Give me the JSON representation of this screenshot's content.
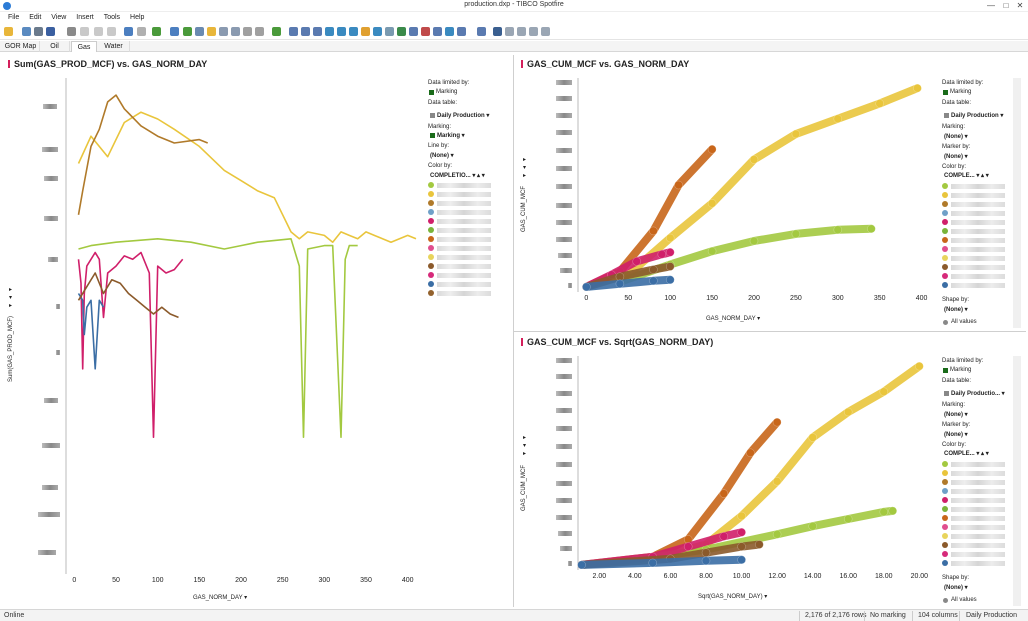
{
  "window": {
    "title": "production.dxp - TIBCO Spotfire"
  },
  "menu": [
    "File",
    "Edit",
    "View",
    "Insert",
    "Tools",
    "Help"
  ],
  "tabs": [
    {
      "label": "GOR Map"
    },
    {
      "label": "Oil"
    },
    {
      "label": "Gas",
      "active": true
    },
    {
      "label": "Water"
    }
  ],
  "colors": {
    "accent": "#d41f5b",
    "marking": "#1a6b1a"
  },
  "series_colors": [
    "#a3c940",
    "#e9c53c",
    "#b07a2a",
    "#6fa0c8",
    "#d01f6a",
    "#7ab43a",
    "#c8661a",
    "#e04e8e",
    "#e8d45c",
    "#8b5a2b",
    "#d62a7a",
    "#3b6ea5",
    "#93622d"
  ],
  "panels": {
    "left": {
      "title": "Sum(GAS_PROD_MCF) vs. GAS_NORM_DAY",
      "y_label": "Sum(GAS_PROD_MCF)",
      "x_label": "GAS_NORM_DAY",
      "legend": {
        "data_limited_label": "Data limited by:",
        "data_limited_value": "Marking",
        "data_table_label": "Data table:",
        "data_table_value": "Daily Production",
        "marking_label": "Marking:",
        "marking_value": "Marking",
        "line_by_label": "Line by:",
        "line_by_value": "(None)",
        "color_by_label": "Color by:",
        "color_by_value": "COMPLETIO..."
      }
    },
    "top_right": {
      "title": "GAS_CUM_MCF vs. GAS_NORM_DAY",
      "y_label": "GAS_CUM_MCF",
      "x_label": "GAS_NORM_DAY",
      "legend": {
        "data_limited_label": "Data limited by:",
        "data_limited_value": "Marking",
        "data_table_label": "Data table:",
        "data_table_value": "Daily Production",
        "marking_label": "Marking:",
        "marking_value": "(None)",
        "marker_by_label": "Marker by:",
        "marker_by_value": "(None)",
        "color_by_label": "Color by:",
        "color_by_value": "COMPLE...",
        "shape_by_label": "Shape by:",
        "shape_by_value": "(None)",
        "all_values": "All values"
      }
    },
    "bottom_right": {
      "title": "GAS_CUM_MCF vs. Sqrt(GAS_NORM_DAY)",
      "y_label": "GAS_CUM_MCF",
      "x_label": "Sqrt(GAS_NORM_DAY)",
      "legend": {
        "data_limited_label": "Data limited by:",
        "data_limited_value": "Marking",
        "data_table_label": "Data table:",
        "data_table_value": "Daily Productio...",
        "marking_label": "Marking:",
        "marking_value": "(None)",
        "marker_by_label": "Marker by:",
        "marker_by_value": "(None)",
        "color_by_label": "Color by:",
        "color_by_value": "COMPLE...",
        "shape_by_label": "Shape by:",
        "shape_by_value": "(None)",
        "all_values": "All values"
      }
    }
  },
  "chart_data": [
    {
      "type": "line",
      "title": "Sum(GAS_PROD_MCF) vs. GAS_NORM_DAY",
      "xlabel": "GAS_NORM_DAY",
      "ylabel": "Sum(GAS_PROD_MCF)",
      "xlim": [
        -10,
        410
      ],
      "x_ticks": [
        0,
        50,
        100,
        150,
        200,
        250,
        300,
        350,
        400
      ],
      "y_tick_labels_obscured": true,
      "series": [
        {
          "color": "#e9c53c",
          "points": [
            [
              5,
              120
            ],
            [
              20,
              128
            ],
            [
              40,
              122
            ],
            [
              60,
              132
            ],
            [
              80,
              135
            ],
            [
              100,
              133
            ],
            [
              120,
              130
            ],
            [
              150,
              125
            ],
            [
              180,
              118
            ],
            [
              200,
              115
            ],
            [
              220,
              112
            ],
            [
              240,
              110
            ],
            [
              260,
              100
            ],
            [
              270,
              98
            ],
            [
              280,
              100
            ],
            [
              300,
              99
            ],
            [
              310,
              97
            ],
            [
              320,
              100
            ],
            [
              330,
              99
            ],
            [
              340,
              98
            ],
            [
              350,
              100
            ],
            [
              360,
              99
            ],
            [
              380,
              97
            ],
            [
              400,
              99
            ],
            [
              410,
              98
            ]
          ]
        },
        {
          "color": "#a3c940",
          "points": [
            [
              5,
              95
            ],
            [
              20,
              96
            ],
            [
              50,
              97
            ],
            [
              100,
              98
            ],
            [
              140,
              97
            ],
            [
              180,
              95
            ],
            [
              200,
              96
            ],
            [
              220,
              97
            ],
            [
              260,
              98
            ],
            [
              270,
              90
            ],
            [
              275,
              40
            ],
            [
              280,
              95
            ],
            [
              300,
              96
            ],
            [
              310,
              96
            ],
            [
              320,
              40
            ],
            [
              325,
              92
            ],
            [
              330,
              96
            ],
            [
              340,
              96
            ]
          ]
        },
        {
          "color": "#b07a2a",
          "points": [
            [
              5,
              105
            ],
            [
              10,
              112
            ],
            [
              20,
              125
            ],
            [
              30,
              130
            ],
            [
              40,
              138
            ],
            [
              50,
              140
            ],
            [
              60,
              136
            ],
            [
              80,
              131
            ],
            [
              100,
              128
            ],
            [
              120,
              126
            ],
            [
              150,
              127
            ],
            [
              160,
              126
            ]
          ]
        },
        {
          "color": "#d01f6a",
          "points": [
            [
              5,
              92
            ],
            [
              8,
              85
            ],
            [
              10,
              60
            ],
            [
              12,
              82
            ],
            [
              15,
              90
            ],
            [
              25,
              94
            ],
            [
              30,
              92
            ],
            [
              35,
              75
            ],
            [
              40,
              88
            ],
            [
              50,
              90
            ],
            [
              60,
              93
            ],
            [
              70,
              92
            ],
            [
              80,
              94
            ],
            [
              90,
              88
            ],
            [
              95,
              40
            ],
            [
              100,
              90
            ],
            [
              110,
              88
            ],
            [
              120,
              89
            ],
            [
              130,
              92
            ]
          ]
        },
        {
          "color": "#3b6ea5",
          "points": [
            [
              5,
              82
            ],
            [
              10,
              80
            ],
            [
              12,
              70
            ],
            [
              15,
              78
            ],
            [
              20,
              80
            ],
            [
              25,
              60
            ],
            [
              30,
              80
            ],
            [
              35,
              78
            ]
          ]
        },
        {
          "color": "#8b5a2b",
          "points": [
            [
              5,
              80
            ],
            [
              15,
              84
            ],
            [
              25,
              88
            ],
            [
              35,
              82
            ],
            [
              45,
              86
            ],
            [
              55,
              85
            ],
            [
              65,
              82
            ],
            [
              75,
              80
            ],
            [
              85,
              78
            ],
            [
              95,
              76
            ],
            [
              105,
              78
            ],
            [
              115,
              76
            ],
            [
              125,
              75
            ]
          ]
        }
      ]
    },
    {
      "type": "scatter",
      "title": "GAS_CUM_MCF vs. GAS_NORM_DAY",
      "xlabel": "GAS_NORM_DAY",
      "ylabel": "GAS_CUM_MCF",
      "xlim": [
        -10,
        410
      ],
      "x_ticks": [
        0,
        50,
        100,
        150,
        200,
        250,
        300,
        350,
        400
      ],
      "y_tick_labels_obscured": true,
      "series": [
        {
          "color": "#e9c53c",
          "points": [
            [
              0,
              0
            ],
            [
              50,
              12
            ],
            [
              100,
              48
            ],
            [
              150,
              82
            ],
            [
              200,
              125
            ],
            [
              250,
              150
            ],
            [
              300,
              165
            ],
            [
              350,
              180
            ],
            [
              395,
              195
            ]
          ]
        },
        {
          "color": "#c8661a",
          "points": [
            [
              0,
              0
            ],
            [
              40,
              15
            ],
            [
              80,
              55
            ],
            [
              110,
              100
            ],
            [
              150,
              135
            ]
          ]
        },
        {
          "color": "#a3c940",
          "points": [
            [
              40,
              5
            ],
            [
              100,
              22
            ],
            [
              150,
              35
            ],
            [
              200,
              45
            ],
            [
              250,
              52
            ],
            [
              300,
              56
            ],
            [
              340,
              57
            ]
          ]
        },
        {
          "color": "#d01f6a",
          "points": [
            [
              0,
              0
            ],
            [
              30,
              12
            ],
            [
              60,
              25
            ],
            [
              90,
              32
            ],
            [
              100,
              34
            ]
          ]
        },
        {
          "color": "#8b5a2b",
          "points": [
            [
              0,
              0
            ],
            [
              40,
              10
            ],
            [
              80,
              17
            ],
            [
              100,
              20
            ]
          ]
        },
        {
          "color": "#3b6ea5",
          "points": [
            [
              0,
              0
            ],
            [
              40,
              3
            ],
            [
              80,
              6
            ],
            [
              100,
              7
            ]
          ]
        }
      ]
    },
    {
      "type": "scatter",
      "title": "GAS_CUM_MCF vs. Sqrt(GAS_NORM_DAY)",
      "xlabel": "Sqrt(GAS_NORM_DAY)",
      "ylabel": "GAS_CUM_MCF",
      "xlim": [
        0.8,
        20.6
      ],
      "x_ticks": [
        2.0,
        4.0,
        6.0,
        8.0,
        10.0,
        12.0,
        14.0,
        16.0,
        18.0,
        20.0
      ],
      "y_tick_labels_obscured": true,
      "series": [
        {
          "color": "#e9c53c",
          "points": [
            [
              1,
              0
            ],
            [
              5,
              6
            ],
            [
              8,
              20
            ],
            [
              10,
              48
            ],
            [
              12,
              82
            ],
            [
              14,
              125
            ],
            [
              16,
              150
            ],
            [
              18,
              170
            ],
            [
              20,
              195
            ]
          ]
        },
        {
          "color": "#c8661a",
          "points": [
            [
              1,
              0
            ],
            [
              5,
              8
            ],
            [
              7,
              25
            ],
            [
              9,
              70
            ],
            [
              10.5,
              110
            ],
            [
              12,
              140
            ]
          ]
        },
        {
          "color": "#a3c940",
          "points": [
            [
              4,
              5
            ],
            [
              8,
              15
            ],
            [
              12,
              30
            ],
            [
              14,
              38
            ],
            [
              16,
              45
            ],
            [
              18,
              52
            ],
            [
              18.5,
              53
            ]
          ]
        },
        {
          "color": "#d01f6a",
          "points": [
            [
              1,
              0
            ],
            [
              5,
              8
            ],
            [
              7,
              18
            ],
            [
              9,
              28
            ],
            [
              10,
              32
            ]
          ]
        },
        {
          "color": "#8b5a2b",
          "points": [
            [
              1,
              0
            ],
            [
              6,
              6
            ],
            [
              8,
              12
            ],
            [
              10,
              18
            ],
            [
              11,
              20
            ]
          ]
        },
        {
          "color": "#3b6ea5",
          "points": [
            [
              1,
              0
            ],
            [
              5,
              2
            ],
            [
              8,
              4
            ],
            [
              10,
              5
            ]
          ]
        }
      ]
    }
  ],
  "status": {
    "left": "Online",
    "rows": "2,176 of 2,176 rows",
    "marking": "No marking",
    "columns": "104 columns",
    "table": "Daily Production"
  }
}
